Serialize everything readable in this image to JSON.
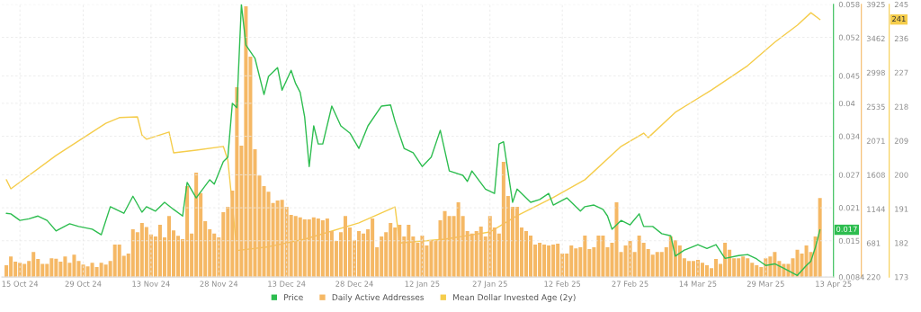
{
  "chart_data": {
    "type": "line",
    "xlim": [
      "2024-10-11",
      "2025-04-13"
    ],
    "xticks": [
      {
        "value": "2024-10-15",
        "label": "15 Oct 24"
      },
      {
        "value": "2024-10-29",
        "label": "29 Oct 24"
      },
      {
        "value": "2024-11-13",
        "label": "13 Nov 24"
      },
      {
        "value": "2024-11-28",
        "label": "28 Nov 24"
      },
      {
        "value": "2024-12-13",
        "label": "13 Dec 24"
      },
      {
        "value": "2024-12-28",
        "label": "28 Dec 24"
      },
      {
        "value": "2025-01-12",
        "label": "12 Jan 25"
      },
      {
        "value": "2025-01-27",
        "label": "27 Jan 25"
      },
      {
        "value": "2025-02-12",
        "label": "12 Feb 25"
      },
      {
        "value": "2025-02-27",
        "label": "27 Feb 25"
      },
      {
        "value": "2025-03-14",
        "label": "14 Mar 25"
      },
      {
        "value": "2025-03-29",
        "label": "29 Mar 25"
      },
      {
        "value": "2025-04-13",
        "label": "13 Apr 25"
      }
    ],
    "ylim": [
      0.0084,
      0.058
    ],
    "yticks": [
      0.0084,
      0.015,
      0.021,
      0.027,
      0.034,
      0.04,
      0.045,
      0.052,
      0.058
    ],
    "y2lim": [
      220,
      3925
    ],
    "y2ticks": [
      220,
      681,
      1144,
      1608,
      2071,
      2535,
      2998,
      3462,
      3925
    ],
    "y3lim": [
      173,
      245
    ],
    "y3ticks": [
      173,
      182,
      191,
      200,
      209,
      218,
      227,
      236,
      245
    ],
    "grid": true,
    "legend": "bottom",
    "annotations": [
      "241",
      "0.017"
    ],
    "series": [
      {
        "name": "Daily Active Addresses",
        "type": "bar",
        "axis": "y2",
        "color": "#f5b865",
        "x": [
          "2024-10-12",
          "2024-10-13",
          "2024-10-14",
          "2024-10-15",
          "2024-10-16",
          "2024-10-17",
          "2024-10-18",
          "2024-10-19",
          "2024-10-20",
          "2024-10-21",
          "2024-10-22",
          "2024-10-23",
          "2024-10-24",
          "2024-10-25",
          "2024-10-26",
          "2024-10-27",
          "2024-10-28",
          "2024-10-29",
          "2024-10-30",
          "2024-10-31",
          "2024-11-01",
          "2024-11-02",
          "2024-11-03",
          "2024-11-04",
          "2024-11-05",
          "2024-11-06",
          "2024-11-07",
          "2024-11-08",
          "2024-11-09",
          "2024-11-10",
          "2024-11-11",
          "2024-11-12",
          "2024-11-13",
          "2024-11-14",
          "2024-11-15",
          "2024-11-16",
          "2024-11-17",
          "2024-11-18",
          "2024-11-19",
          "2024-11-20",
          "2024-11-21",
          "2024-11-22",
          "2024-11-23",
          "2024-11-24",
          "2024-11-25",
          "2024-11-26",
          "2024-11-27",
          "2024-11-28",
          "2024-11-29",
          "2024-11-30",
          "2024-12-01",
          "2024-12-02",
          "2024-12-03",
          "2024-12-04",
          "2024-12-05",
          "2024-12-06",
          "2024-12-07",
          "2024-12-08",
          "2024-12-09",
          "2024-12-10",
          "2024-12-11",
          "2024-12-12",
          "2024-12-13",
          "2024-12-14",
          "2024-12-15",
          "2024-12-16",
          "2024-12-17",
          "2024-12-18",
          "2024-12-19",
          "2024-12-20",
          "2024-12-21",
          "2024-12-22",
          "2024-12-23",
          "2024-12-24",
          "2024-12-25",
          "2024-12-26",
          "2024-12-27",
          "2024-12-28",
          "2024-12-29",
          "2024-12-30",
          "2024-12-31",
          "2025-01-01",
          "2025-01-02",
          "2025-01-03",
          "2025-01-04",
          "2025-01-05",
          "2025-01-06",
          "2025-01-07",
          "2025-01-08",
          "2025-01-09",
          "2025-01-10",
          "2025-01-11",
          "2025-01-12",
          "2025-01-13",
          "2025-01-14",
          "2025-01-15",
          "2025-01-16",
          "2025-01-17",
          "2025-01-18",
          "2025-01-19",
          "2025-01-20",
          "2025-01-21",
          "2025-01-22",
          "2025-01-23",
          "2025-01-24",
          "2025-01-25",
          "2025-01-26",
          "2025-01-27",
          "2025-01-28",
          "2025-01-29",
          "2025-01-30",
          "2025-01-31",
          "2025-02-01",
          "2025-02-02",
          "2025-02-03",
          "2025-02-04",
          "2025-02-05",
          "2025-02-06",
          "2025-02-07",
          "2025-02-08",
          "2025-02-09",
          "2025-02-10",
          "2025-02-11",
          "2025-02-12",
          "2025-02-13",
          "2025-02-14",
          "2025-02-15",
          "2025-02-16",
          "2025-02-17",
          "2025-02-18",
          "2025-02-19",
          "2025-02-20",
          "2025-02-21",
          "2025-02-22",
          "2025-02-23",
          "2025-02-24",
          "2025-02-25",
          "2025-02-26",
          "2025-02-27",
          "2025-02-28",
          "2025-03-01",
          "2025-03-02",
          "2025-03-03",
          "2025-03-04",
          "2025-03-05",
          "2025-03-06",
          "2025-03-07",
          "2025-03-08",
          "2025-03-09",
          "2025-03-10",
          "2025-03-11",
          "2025-03-12",
          "2025-03-13",
          "2025-03-14",
          "2025-03-15",
          "2025-03-16",
          "2025-03-17",
          "2025-03-18",
          "2025-03-19",
          "2025-03-20",
          "2025-03-21",
          "2025-03-22",
          "2025-03-23",
          "2025-03-24",
          "2025-03-25",
          "2025-03-26",
          "2025-03-27",
          "2025-03-28",
          "2025-03-29",
          "2025-03-30",
          "2025-03-31",
          "2025-04-01",
          "2025-04-02",
          "2025-04-03",
          "2025-04-04",
          "2025-04-05",
          "2025-04-06",
          "2025-04-07",
          "2025-04-08",
          "2025-04-09",
          "2025-04-10"
        ],
        "values": [
          380,
          500,
          430,
          415,
          400,
          440,
          560,
          465,
          400,
          400,
          475,
          470,
          430,
          500,
          415,
          525,
          440,
          390,
          365,
          415,
          355,
          415,
          390,
          440,
          660,
          660,
          510,
          540,
          870,
          830,
          955,
          900,
          800,
          770,
          930,
          760,
          1050,
          855,
          780,
          735,
          1455,
          810,
          1640,
          1360,
          980,
          870,
          810,
          760,
          1100,
          1175,
          1395,
          2800,
          2005,
          3900,
          3215,
          1955,
          1600,
          1455,
          1380,
          1225,
          1260,
          1270,
          1175,
          1065,
          1050,
          1030,
          1005,
          1005,
          1030,
          1015,
          990,
          1015,
          845,
          710,
          830,
          1050,
          895,
          720,
          845,
          810,
          870,
          1015,
          625,
          770,
          830,
          955,
          895,
          930,
          770,
          930,
          770,
          685,
          785,
          650,
          720,
          720,
          990,
          1115,
          1050,
          1050,
          1235,
          1050,
          845,
          810,
          845,
          905,
          770,
          1050,
          895,
          810,
          1785,
          1320,
          1175,
          1175,
          895,
          845,
          785,
          660,
          685,
          660,
          650,
          660,
          675,
          540,
          540,
          650,
          610,
          625,
          785,
          600,
          625,
          785,
          785,
          625,
          685,
          1235,
          560,
          650,
          710,
          560,
          785,
          685,
          600,
          525,
          560,
          560,
          625,
          770,
          720,
          650,
          475,
          440,
          440,
          455,
          415,
          380,
          340,
          465,
          400,
          685,
          590,
          475,
          475,
          500,
          475,
          415,
          380,
          355,
          475,
          500,
          560,
          440,
          400,
          400,
          475,
          590,
          540,
          650,
          560,
          770,
          1295
        ]
      },
      {
        "name": "Mean Dollar Invested Age (2y)",
        "axis": "y3",
        "color": "#f5cd4c",
        "x": [
          "2024-10-12",
          "2024-10-13",
          "2024-10-23",
          "2024-11-03",
          "2024-11-06",
          "2024-11-10",
          "2024-11-11",
          "2024-11-12",
          "2024-11-17",
          "2024-11-18",
          "2024-11-23",
          "2024-11-29",
          "2024-11-30",
          "2024-12-02",
          "2024-12-09",
          "2024-12-17",
          "2024-12-29",
          "2025-01-06",
          "2025-01-07",
          "2025-01-17",
          "2025-01-27",
          "2025-02-02",
          "2025-02-10",
          "2025-02-17",
          "2025-02-25",
          "2025-03-02",
          "2025-03-03",
          "2025-03-09",
          "2025-03-17",
          "2025-03-25",
          "2025-03-31",
          "2025-04-05",
          "2025-04-08",
          "2025-04-10"
        ],
        "values": [
          198.7,
          196.3,
          205.1,
          213.6,
          215.1,
          215.3,
          210.5,
          209.4,
          211.3,
          205.8,
          206.5,
          207.5,
          203.9,
          180.0,
          181.0,
          183.0,
          187.3,
          191.5,
          182.0,
          183.0,
          184.9,
          189.2,
          194.0,
          198.7,
          207.5,
          211.0,
          209.8,
          216.5,
          222.4,
          228.8,
          235.0,
          239.5,
          242.8,
          241.0
        ]
      },
      {
        "name": "Price",
        "axis": "y",
        "color": "#2dbd4f",
        "x": [
          "2024-10-12",
          "2024-10-13",
          "2024-10-15",
          "2024-10-17",
          "2024-10-19",
          "2024-10-21",
          "2024-10-23",
          "2024-10-26",
          "2024-10-28",
          "2024-10-31",
          "2024-11-02",
          "2024-11-04",
          "2024-11-07",
          "2024-11-09",
          "2024-11-11",
          "2024-11-12",
          "2024-11-14",
          "2024-11-16",
          "2024-11-18",
          "2024-11-20",
          "2024-11-21",
          "2024-11-23",
          "2024-11-26",
          "2024-11-27",
          "2024-11-29",
          "2024-11-30",
          "2024-12-01",
          "2024-12-02",
          "2024-12-03",
          "2024-12-04",
          "2024-12-06",
          "2024-12-08",
          "2024-12-09",
          "2024-12-11",
          "2024-12-12",
          "2024-12-14",
          "2024-12-15",
          "2024-12-16",
          "2024-12-17",
          "2024-12-18",
          "2024-12-19",
          "2024-12-20",
          "2024-12-21",
          "2024-12-23",
          "2024-12-25",
          "2024-12-27",
          "2024-12-29",
          "2024-12-31",
          "2025-01-03",
          "2025-01-05",
          "2025-01-06",
          "2025-01-08",
          "2025-01-10",
          "2025-01-12",
          "2025-01-14",
          "2025-01-16",
          "2025-01-18",
          "2025-01-21",
          "2025-01-22",
          "2025-01-23",
          "2025-01-26",
          "2025-01-28",
          "2025-01-29",
          "2025-01-30",
          "2025-02-01",
          "2025-02-02",
          "2025-02-05",
          "2025-02-07",
          "2025-02-09",
          "2025-02-10",
          "2025-02-13",
          "2025-02-16",
          "2025-02-17",
          "2025-02-19",
          "2025-02-21",
          "2025-02-22",
          "2025-02-23",
          "2025-02-25",
          "2025-02-27",
          "2025-03-01",
          "2025-03-02",
          "2025-03-04",
          "2025-03-06",
          "2025-03-08",
          "2025-03-09",
          "2025-03-11",
          "2025-03-14",
          "2025-03-16",
          "2025-03-18",
          "2025-03-20",
          "2025-03-23",
          "2025-03-25",
          "2025-03-27",
          "2025-03-29",
          "2025-03-31",
          "2025-04-02",
          "2025-04-05",
          "2025-04-07",
          "2025-04-08",
          "2025-04-09",
          "2025-04-10"
        ],
        "values": [
          0.02,
          0.0199,
          0.0187,
          0.019,
          0.0195,
          0.0187,
          0.0168,
          0.0181,
          0.0176,
          0.0171,
          0.0161,
          0.0212,
          0.02,
          0.0231,
          0.0202,
          0.0212,
          0.0204,
          0.022,
          0.0207,
          0.0195,
          0.0256,
          0.0228,
          0.0261,
          0.0253,
          0.0294,
          0.0302,
          0.04,
          0.0392,
          0.058,
          0.0506,
          0.0482,
          0.0416,
          0.0449,
          0.0465,
          0.0424,
          0.046,
          0.0436,
          0.042,
          0.0375,
          0.0285,
          0.0359,
          0.0326,
          0.0326,
          0.0395,
          0.0359,
          0.0346,
          0.0318,
          0.0359,
          0.0395,
          0.0397,
          0.0367,
          0.0318,
          0.031,
          0.0285,
          0.0302,
          0.0351,
          0.0277,
          0.0269,
          0.0258,
          0.0277,
          0.0244,
          0.0236,
          0.0326,
          0.033,
          0.022,
          0.0244,
          0.022,
          0.0225,
          0.0236,
          0.0215,
          0.0228,
          0.0204,
          0.0212,
          0.0215,
          0.0207,
          0.0195,
          0.0171,
          0.0187,
          0.0179,
          0.0199,
          0.0176,
          0.0176,
          0.0163,
          0.0159,
          0.0122,
          0.0133,
          0.0143,
          0.0136,
          0.0143,
          0.0118,
          0.0123,
          0.0125,
          0.0117,
          0.0105,
          0.0108,
          0.01,
          0.0087,
          0.0105,
          0.0113,
          0.0138,
          0.017
        ]
      }
    ]
  }
}
